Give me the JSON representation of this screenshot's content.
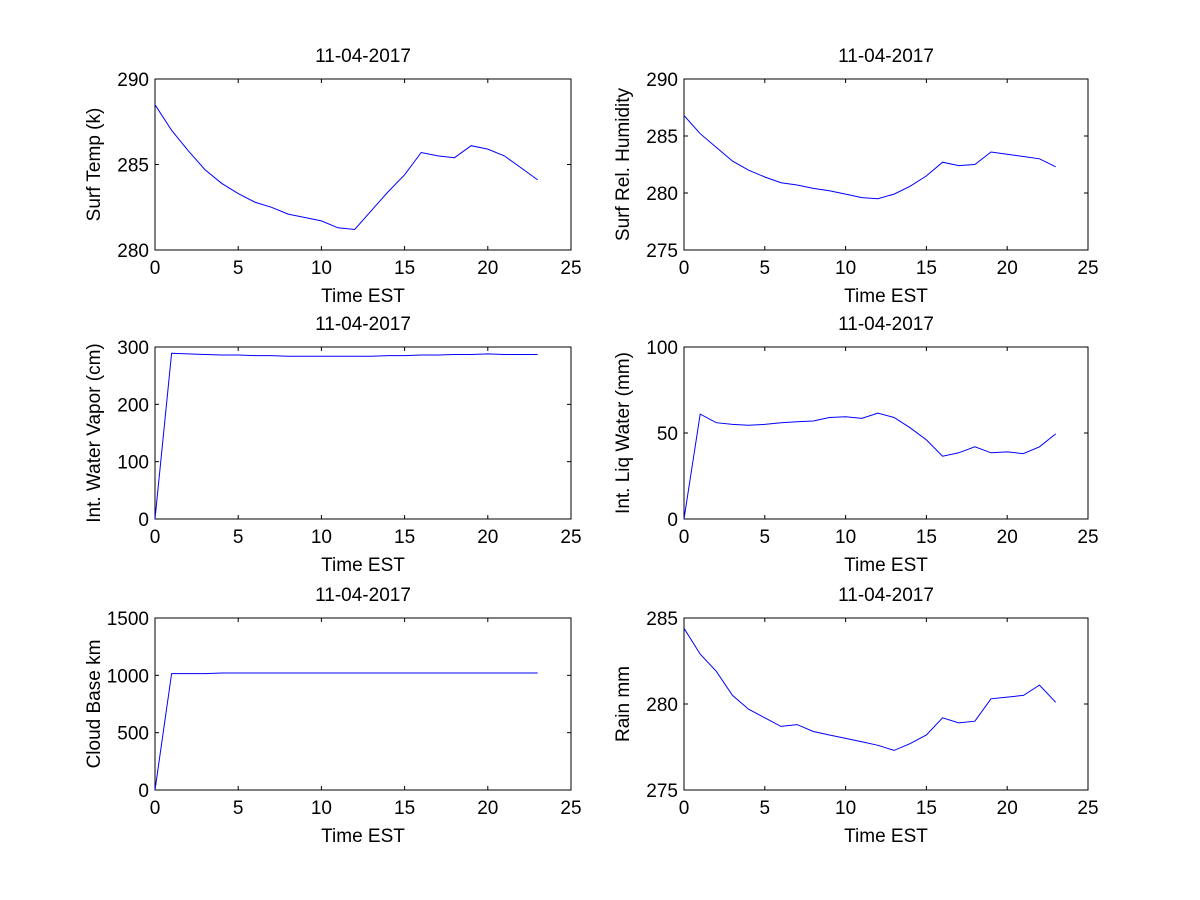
{
  "colors": {
    "line": "#0000ff",
    "axes": "#000000",
    "background": "#ffffff"
  },
  "chart_data": [
    {
      "type": "line",
      "title": "11-04-2017",
      "xlabel": "Time EST",
      "ylabel": "Surf Temp (k)",
      "xlim": [
        0,
        25
      ],
      "ylim": [
        280,
        290
      ],
      "xticks": [
        0,
        5,
        10,
        15,
        20,
        25
      ],
      "yticks": [
        280,
        285,
        290
      ],
      "grid": false,
      "x": [
        0,
        1,
        2,
        3,
        4,
        5,
        6,
        7,
        8,
        9,
        10,
        11,
        12,
        13,
        14,
        15,
        16,
        17,
        18,
        19,
        20,
        21,
        22,
        23
      ],
      "y": [
        288.5,
        287.0,
        285.8,
        284.7,
        283.9,
        283.3,
        282.8,
        282.5,
        282.1,
        281.9,
        281.7,
        281.3,
        281.2,
        282.3,
        283.4,
        284.4,
        285.7,
        285.5,
        285.4,
        286.1,
        285.9,
        285.5,
        284.8,
        284.1
      ]
    },
    {
      "type": "line",
      "title": "11-04-2017",
      "xlabel": "Time EST",
      "ylabel": "Surf Rel. Humidity",
      "xlim": [
        0,
        25
      ],
      "ylim": [
        275,
        290
      ],
      "xticks": [
        0,
        5,
        10,
        15,
        20,
        25
      ],
      "yticks": [
        275,
        280,
        285,
        290
      ],
      "grid": false,
      "x": [
        0,
        1,
        2,
        3,
        4,
        5,
        6,
        7,
        8,
        9,
        10,
        11,
        12,
        13,
        14,
        15,
        16,
        17,
        18,
        19,
        20,
        21,
        22,
        23
      ],
      "y": [
        286.8,
        285.2,
        284.0,
        282.8,
        282.0,
        281.4,
        280.9,
        280.7,
        280.4,
        280.2,
        279.9,
        279.6,
        279.5,
        279.9,
        280.6,
        281.5,
        282.7,
        282.4,
        282.5,
        283.6,
        283.4,
        283.2,
        283.0,
        282.3
      ]
    },
    {
      "type": "line",
      "title": "11-04-2017",
      "xlabel": "Time EST",
      "ylabel": "Int. Water Vapor (cm)",
      "xlim": [
        0,
        25
      ],
      "ylim": [
        0,
        300
      ],
      "xticks": [
        0,
        5,
        10,
        15,
        20,
        25
      ],
      "yticks": [
        0,
        100,
        200,
        300
      ],
      "grid": false,
      "x": [
        0,
        1,
        2,
        3,
        4,
        5,
        6,
        7,
        8,
        9,
        10,
        11,
        12,
        13,
        14,
        15,
        16,
        17,
        18,
        19,
        20,
        21,
        22,
        23
      ],
      "y": [
        0,
        289,
        288,
        287,
        286,
        286,
        285,
        285,
        284,
        284,
        284,
        284,
        284,
        284,
        285,
        285,
        286,
        286,
        287,
        287,
        288,
        287,
        287,
        287
      ]
    },
    {
      "type": "line",
      "title": "11-04-2017",
      "xlabel": "Time EST",
      "ylabel": "Int. Liq Water (mm)",
      "xlim": [
        0,
        25
      ],
      "ylim": [
        0,
        100
      ],
      "xticks": [
        0,
        5,
        10,
        15,
        20,
        25
      ],
      "yticks": [
        0,
        50,
        100
      ],
      "grid": false,
      "x": [
        0,
        1,
        2,
        3,
        4,
        5,
        6,
        7,
        8,
        9,
        10,
        11,
        12,
        13,
        14,
        15,
        16,
        17,
        18,
        19,
        20,
        21,
        22,
        23
      ],
      "y": [
        0,
        61,
        56,
        55,
        54.5,
        55,
        56,
        56.5,
        57,
        59,
        59.5,
        58.5,
        61.5,
        59,
        53,
        46,
        36.5,
        38.5,
        42,
        38.5,
        39,
        38,
        42,
        49.5
      ]
    },
    {
      "type": "line",
      "title": "11-04-2017",
      "xlabel": "Time EST",
      "ylabel": "Cloud Base km",
      "xlim": [
        0,
        25
      ],
      "ylim": [
        0,
        1500
      ],
      "xticks": [
        0,
        5,
        10,
        15,
        20,
        25
      ],
      "yticks": [
        0,
        500,
        1000,
        1500
      ],
      "grid": false,
      "x": [
        0,
        1,
        2,
        3,
        4,
        5,
        6,
        7,
        8,
        9,
        10,
        11,
        12,
        13,
        14,
        15,
        16,
        17,
        18,
        19,
        20,
        21,
        22,
        23
      ],
      "y": [
        0,
        1015,
        1015,
        1015,
        1020,
        1020,
        1020,
        1020,
        1020,
        1020,
        1020,
        1020,
        1020,
        1020,
        1020,
        1020,
        1020,
        1020,
        1020,
        1020,
        1020,
        1020,
        1020,
        1020
      ]
    },
    {
      "type": "line",
      "title": "11-04-2017",
      "xlabel": "Time EST",
      "ylabel": "Rain mm",
      "xlim": [
        0,
        25
      ],
      "ylim": [
        275,
        285
      ],
      "xticks": [
        0,
        5,
        10,
        15,
        20,
        25
      ],
      "yticks": [
        275,
        280,
        285
      ],
      "grid": false,
      "x": [
        0,
        1,
        2,
        3,
        4,
        5,
        6,
        7,
        8,
        9,
        10,
        11,
        12,
        13,
        14,
        15,
        16,
        17,
        18,
        19,
        20,
        21,
        22,
        23
      ],
      "y": [
        284.4,
        282.9,
        281.9,
        280.5,
        279.7,
        279.2,
        278.7,
        278.8,
        278.4,
        278.2,
        278.0,
        277.8,
        277.6,
        277.3,
        277.7,
        278.2,
        279.2,
        278.9,
        279.0,
        280.3,
        280.4,
        280.5,
        281.1,
        280.1
      ]
    }
  ]
}
